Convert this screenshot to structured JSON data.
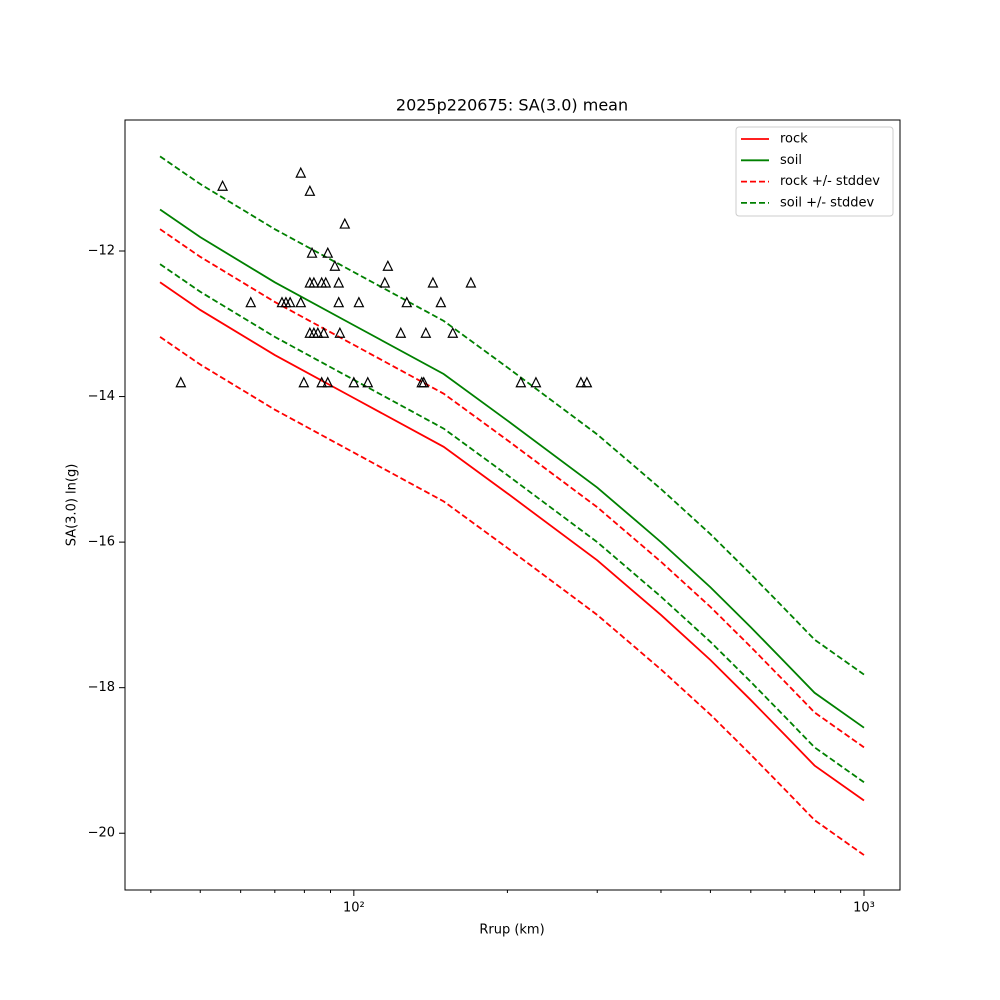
{
  "chart_data": {
    "type": "line",
    "title": "2025p220675: SA(3.0) mean",
    "xlabel": "Rrup (km)",
    "ylabel": "SA(3.0) ln(g)",
    "xscale": "log",
    "xlim": [
      35.6,
      1176.5
    ],
    "ylim": [
      -20.78,
      -10.2
    ],
    "xticks": [
      {
        "value": 100,
        "label": "10²"
      },
      {
        "value": 1000,
        "label": "10³"
      }
    ],
    "xminorticks": [
      40,
      50,
      60,
      70,
      80,
      90,
      200,
      300,
      400,
      500,
      600,
      700,
      800,
      900
    ],
    "yticks": [
      {
        "value": -12,
        "label": "−12"
      },
      {
        "value": -14,
        "label": "−14"
      },
      {
        "value": -16,
        "label": "−16"
      },
      {
        "value": -18,
        "label": "−18"
      },
      {
        "value": -20,
        "label": "−20"
      }
    ],
    "legend": "upper right",
    "x": [
      41.7,
      50,
      70,
      100,
      150,
      200,
      300,
      400,
      500,
      600,
      700,
      800,
      1000
    ],
    "series": [
      {
        "name": "rock",
        "color": "#ff0000",
        "dash": false,
        "values": [
          -12.43,
          -12.81,
          -13.43,
          -14.02,
          -14.69,
          -15.33,
          -16.25,
          -17.0,
          -17.62,
          -18.17,
          -18.65,
          -19.07,
          -19.55
        ]
      },
      {
        "name": "soil",
        "color": "#008000",
        "dash": false,
        "values": [
          -11.43,
          -11.81,
          -12.43,
          -13.02,
          -13.69,
          -14.33,
          -15.25,
          -16.0,
          -16.62,
          -17.17,
          -17.65,
          -18.07,
          -18.55
        ]
      },
      {
        "name": "rock +/- stddev",
        "color": "#ff0000",
        "dash": true,
        "upper": [
          -11.7,
          -12.08,
          -12.7,
          -13.29,
          -13.96,
          -14.6,
          -15.52,
          -16.27,
          -16.89,
          -17.44,
          -17.92,
          -18.34,
          -18.82
        ],
        "lower": [
          -13.18,
          -13.56,
          -14.18,
          -14.77,
          -15.44,
          -16.08,
          -17.0,
          -17.75,
          -18.37,
          -18.92,
          -19.4,
          -19.82,
          -20.3
        ]
      },
      {
        "name": "soil +/- stddev",
        "color": "#008000",
        "dash": true,
        "upper": [
          -10.7,
          -11.08,
          -11.7,
          -12.29,
          -12.96,
          -13.6,
          -14.52,
          -15.27,
          -15.89,
          -16.44,
          -16.92,
          -17.34,
          -17.82
        ],
        "lower": [
          -12.18,
          -12.56,
          -13.18,
          -13.77,
          -14.44,
          -15.08,
          -16.0,
          -16.75,
          -17.37,
          -17.92,
          -18.4,
          -18.82,
          -19.3
        ]
      }
    ],
    "points": {
      "color": "#000000",
      "x": [
        45.8,
        55.3,
        62.8,
        72.3,
        73.6,
        75.0,
        78.7,
        78.7,
        79.8,
        82.0,
        82.0,
        82.8,
        82.0,
        83.5,
        83.5,
        85.0,
        86.5,
        86.5,
        87.3,
        88.1,
        88.9,
        88.9,
        91.8,
        93.4,
        93.4,
        93.9,
        96.0,
        100,
        102.3,
        106.5,
        115.0,
        116.6,
        123.6,
        127.0,
        135.9,
        137.1,
        138.4,
        142.9,
        148.1,
        156.3,
        169.6,
        212.5,
        227.5,
        278.7,
        286.3
      ],
      "y": [
        -13.81,
        -11.11,
        -12.71,
        -12.71,
        -12.71,
        -12.71,
        -10.93,
        -12.71,
        -13.81,
        -11.18,
        -12.44,
        -12.03,
        -13.13,
        -12.44,
        -13.13,
        -13.13,
        -12.44,
        -13.81,
        -13.13,
        -12.44,
        -12.03,
        -13.81,
        -12.21,
        -12.71,
        -12.44,
        -13.13,
        -11.63,
        -13.81,
        -12.71,
        -13.81,
        -12.44,
        -12.21,
        -13.13,
        -12.71,
        -13.81,
        -13.81,
        -13.13,
        -12.44,
        -12.71,
        -13.13,
        -12.44,
        -13.81,
        -13.81,
        -13.81,
        -13.81
      ]
    }
  }
}
